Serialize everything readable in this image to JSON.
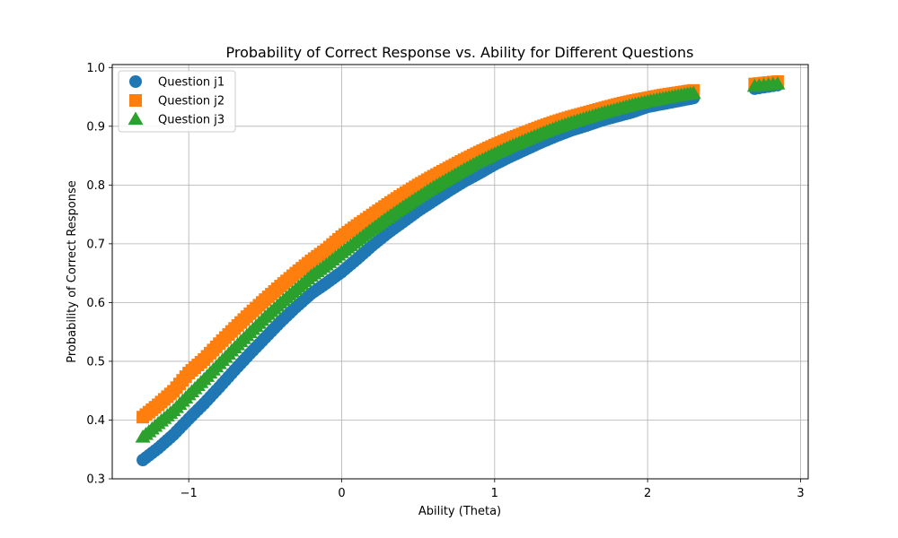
{
  "chart_data": {
    "type": "scatter",
    "title": "Probability of Correct Response vs. Ability for Different Questions",
    "xlabel": "Ability (Theta)",
    "ylabel": "Probability of Correct Response",
    "xlim": [
      -1.5,
      3.05
    ],
    "ylim": [
      0.3,
      1.005
    ],
    "xticks": [
      -1,
      0,
      1,
      2,
      3
    ],
    "xtick_labels": [
      "−1",
      "0",
      "1",
      "2",
      "3"
    ],
    "yticks": [
      0.3,
      0.4,
      0.5,
      0.6,
      0.7,
      0.8,
      0.9,
      1.0
    ],
    "ytick_labels": [
      "0.3",
      "0.4",
      "0.5",
      "0.6",
      "0.7",
      "0.8",
      "0.9",
      "1.0"
    ],
    "grid": true,
    "legend_position": "top-left",
    "series": [
      {
        "name": "Question j1",
        "marker": "circle",
        "color": "#1f77b4",
        "points": [
          [
            -1.3,
            0.332
          ],
          [
            -1.2,
            0.352
          ],
          [
            -1.1,
            0.375
          ],
          [
            -1.0,
            0.402
          ],
          [
            -0.9,
            0.428
          ],
          [
            -0.8,
            0.456
          ],
          [
            -0.7,
            0.485
          ],
          [
            -0.6,
            0.513
          ],
          [
            -0.5,
            0.54
          ],
          [
            -0.4,
            0.567
          ],
          [
            -0.3,
            0.592
          ],
          [
            -0.2,
            0.615
          ],
          [
            -0.1,
            0.633
          ],
          [
            0.0,
            0.652
          ],
          [
            0.1,
            0.674
          ],
          [
            0.2,
            0.697
          ],
          [
            0.3,
            0.718
          ],
          [
            0.4,
            0.737
          ],
          [
            0.5,
            0.756
          ],
          [
            0.6,
            0.773
          ],
          [
            0.7,
            0.79
          ],
          [
            0.8,
            0.806
          ],
          [
            0.9,
            0.82
          ],
          [
            1.0,
            0.835
          ],
          [
            1.1,
            0.848
          ],
          [
            1.2,
            0.86
          ],
          [
            1.3,
            0.872
          ],
          [
            1.4,
            0.883
          ],
          [
            1.5,
            0.893
          ],
          [
            1.6,
            0.901
          ],
          [
            1.7,
            0.91
          ],
          [
            1.8,
            0.917
          ],
          [
            1.9,
            0.924
          ],
          [
            2.0,
            0.933
          ],
          [
            2.1,
            0.938
          ],
          [
            2.2,
            0.943
          ],
          [
            2.3,
            0.948
          ],
          [
            2.7,
            0.964
          ],
          [
            2.85,
            0.97
          ]
        ]
      },
      {
        "name": "Question j2",
        "marker": "square",
        "color": "#ff7f0e",
        "points": [
          [
            -1.3,
            0.405
          ],
          [
            -1.2,
            0.426
          ],
          [
            -1.1,
            0.449
          ],
          [
            -1.0,
            0.48
          ],
          [
            -0.9,
            0.503
          ],
          [
            -0.8,
            0.53
          ],
          [
            -0.7,
            0.556
          ],
          [
            -0.6,
            0.581
          ],
          [
            -0.5,
            0.605
          ],
          [
            -0.4,
            0.628
          ],
          [
            -0.3,
            0.65
          ],
          [
            -0.2,
            0.671
          ],
          [
            -0.1,
            0.69
          ],
          [
            0.0,
            0.712
          ],
          [
            0.1,
            0.731
          ],
          [
            0.2,
            0.749
          ],
          [
            0.3,
            0.767
          ],
          [
            0.4,
            0.784
          ],
          [
            0.5,
            0.8
          ],
          [
            0.6,
            0.815
          ],
          [
            0.7,
            0.829
          ],
          [
            0.8,
            0.843
          ],
          [
            0.9,
            0.856
          ],
          [
            1.0,
            0.868
          ],
          [
            1.1,
            0.879
          ],
          [
            1.2,
            0.889
          ],
          [
            1.3,
            0.899
          ],
          [
            1.4,
            0.908
          ],
          [
            1.5,
            0.916
          ],
          [
            1.6,
            0.923
          ],
          [
            1.7,
            0.93
          ],
          [
            1.8,
            0.937
          ],
          [
            1.9,
            0.943
          ],
          [
            2.0,
            0.948
          ],
          [
            2.1,
            0.953
          ],
          [
            2.2,
            0.957
          ],
          [
            2.3,
            0.961
          ],
          [
            2.7,
            0.972
          ],
          [
            2.85,
            0.976
          ]
        ]
      },
      {
        "name": "Question j3",
        "marker": "triangle",
        "color": "#2ca02c",
        "points": [
          [
            -1.3,
            0.371
          ],
          [
            -1.2,
            0.394
          ],
          [
            -1.1,
            0.416
          ],
          [
            -1.0,
            0.443
          ],
          [
            -0.9,
            0.469
          ],
          [
            -0.8,
            0.496
          ],
          [
            -0.7,
            0.523
          ],
          [
            -0.6,
            0.549
          ],
          [
            -0.5,
            0.575
          ],
          [
            -0.4,
            0.599
          ],
          [
            -0.3,
            0.622
          ],
          [
            -0.2,
            0.645
          ],
          [
            -0.1,
            0.664
          ],
          [
            0.0,
            0.685
          ],
          [
            0.1,
            0.705
          ],
          [
            0.2,
            0.725
          ],
          [
            0.3,
            0.744
          ],
          [
            0.4,
            0.762
          ],
          [
            0.5,
            0.779
          ],
          [
            0.6,
            0.796
          ],
          [
            0.7,
            0.811
          ],
          [
            0.8,
            0.826
          ],
          [
            0.9,
            0.84
          ],
          [
            1.0,
            0.853
          ],
          [
            1.1,
            0.865
          ],
          [
            1.2,
            0.876
          ],
          [
            1.3,
            0.887
          ],
          [
            1.4,
            0.897
          ],
          [
            1.5,
            0.906
          ],
          [
            1.6,
            0.914
          ],
          [
            1.7,
            0.922
          ],
          [
            1.8,
            0.929
          ],
          [
            1.9,
            0.936
          ],
          [
            2.0,
            0.942
          ],
          [
            2.1,
            0.947
          ],
          [
            2.2,
            0.952
          ],
          [
            2.3,
            0.956
          ],
          [
            2.7,
            0.968
          ],
          [
            2.85,
            0.972
          ]
        ]
      }
    ]
  }
}
